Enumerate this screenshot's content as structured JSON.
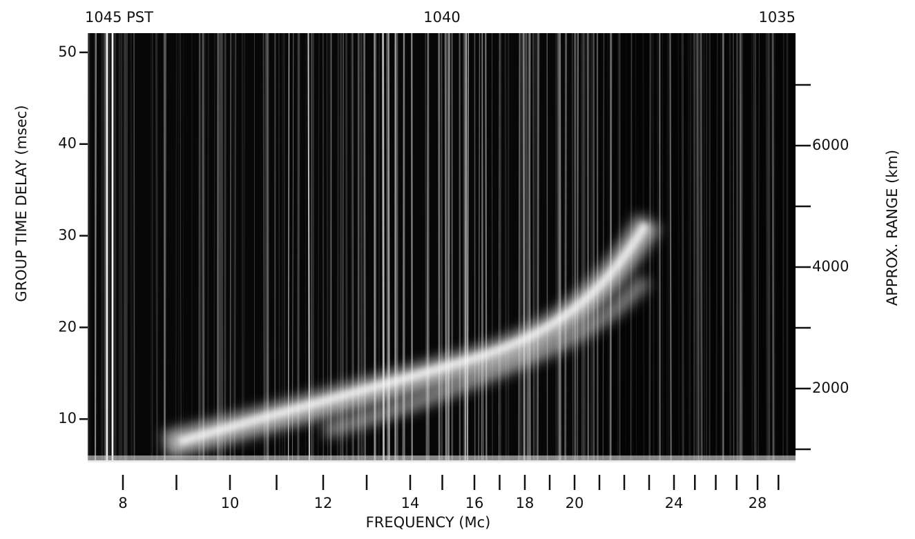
{
  "chart_data": {
    "type": "ionogram",
    "top_labels": [
      "1045 PST",
      "1040",
      "1035"
    ],
    "x_label": "FREQUENCY  (Mc)",
    "y_label": "GROUP TIME DELAY (msec)",
    "y2_label": "APPROX. RANGE (km)",
    "xlim": [
      7.3,
      29.8
    ],
    "xticks": [
      8,
      10,
      12,
      14,
      16,
      18,
      20,
      24,
      28
    ],
    "xminor_ticks": [
      9,
      11,
      13,
      15,
      17,
      19,
      21,
      22,
      23,
      25,
      26,
      27,
      29
    ],
    "ylim": [
      5.5,
      52.1
    ],
    "yticks": [
      10,
      20,
      30,
      40,
      50
    ],
    "y2lim": [
      818,
      7852
    ],
    "y2ticks": [
      2000,
      4000,
      6000
    ],
    "y2minor_ticks": [
      1000,
      3000,
      5000,
      7000
    ]
  }
}
